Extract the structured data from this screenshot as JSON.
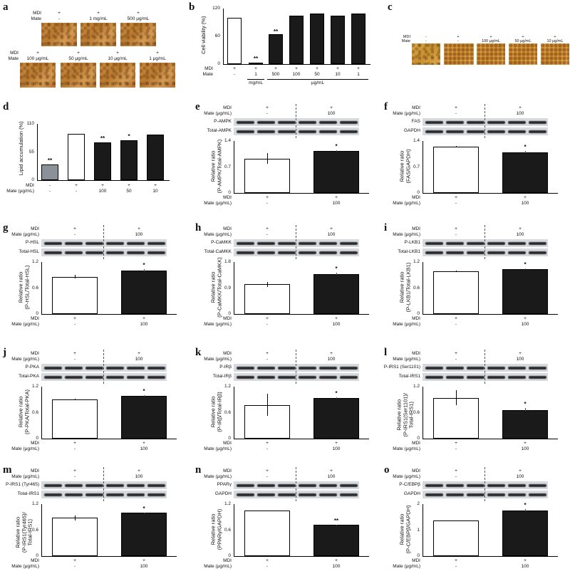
{
  "figure": {
    "panels": {
      "a": {
        "label": "a",
        "row1": {
          "mdi_label": "MDI",
          "mate_label": "Mate",
          "items": [
            {
              "mdi": "+",
              "mate": "-"
            },
            {
              "mdi": "+",
              "mate": "1 mg/mL"
            },
            {
              "mdi": "+",
              "mate": "500 μg/mL"
            }
          ]
        },
        "row2": {
          "mdi_label": "MDI",
          "mate_label": "Mate",
          "items": [
            {
              "mdi": "+",
              "mate": "100 μg/mL"
            },
            {
              "mdi": "+",
              "mate": "50 μg/mL"
            },
            {
              "mdi": "+",
              "mate": "10 μg/mL"
            },
            {
              "mdi": "+",
              "mate": "1 μg/mL"
            }
          ]
        }
      },
      "b": {
        "label": "b",
        "ylabel": "Cell viability (%)",
        "yticks": [
          "120",
          "60",
          "0"
        ],
        "mdi_label": "MDI",
        "mate_label": "Mate",
        "mdi": [
          "+",
          "+",
          "+",
          "+",
          "+",
          "+",
          "+"
        ],
        "mate": [
          "-",
          "1",
          "500",
          "100",
          "50",
          "10",
          "1"
        ],
        "unit_groups": [
          "mg/mL",
          "μg/mL"
        ],
        "stars": [
          "",
          "**",
          "**",
          "",
          "",
          "",
          ""
        ]
      },
      "c": {
        "label": "c",
        "mdi_label": "MDI",
        "mate_label": "Mate",
        "items": [
          {
            "mdi": "-",
            "mate": "-"
          },
          {
            "mdi": "+",
            "mate": "-"
          },
          {
            "mdi": "+",
            "mate": "100 μg/mL"
          },
          {
            "mdi": "+",
            "mate": "50 μg/mL"
          },
          {
            "mdi": "+",
            "mate": "10 μg/mL"
          }
        ]
      },
      "d": {
        "label": "d",
        "ylabel": "Lipid accumulation (%)",
        "yticks": [
          "110",
          "55",
          "0"
        ],
        "mdi_label": "MDI",
        "mate_label": "Mate (μg/mL)",
        "mdi": [
          "-",
          "+",
          "+",
          "+",
          "+"
        ],
        "mate": [
          "-",
          "-",
          "100",
          "50",
          "10"
        ],
        "stars": [
          "**",
          "",
          "**",
          "*",
          ""
        ]
      },
      "e": {
        "label": "e",
        "blot_rows": [
          "P-AMPK",
          "Total-AMPK"
        ],
        "ylabel": "Relative ratio\n(P-AMPK/Total-AMPK)",
        "yticks": [
          "1.4",
          "0.7",
          "0"
        ],
        "star": "*"
      },
      "f": {
        "label": "f",
        "blot_rows": [
          "FAS",
          "GAPDH"
        ],
        "ylabel": "Relative ratio\n(FAS/GAPDH)",
        "yticks": [
          "1.4",
          "0.7",
          "0"
        ],
        "star": "*"
      },
      "g": {
        "label": "g",
        "blot_rows": [
          "P-HSL",
          "Total-HSL"
        ],
        "ylabel": "Relative ratio\n(P-HSL/Total-HSL)",
        "yticks": [
          "1.2",
          "0.6",
          "0"
        ],
        "star": "*"
      },
      "h": {
        "label": "h",
        "blot_rows": [
          "P-CaMKK",
          "Total-CaMKK"
        ],
        "ylabel": "Relative ratio\n(P-CaMKK/Total-CaMKK)",
        "yticks": [
          "1.8",
          "0.9",
          "0"
        ],
        "star": "*"
      },
      "i": {
        "label": "i",
        "blot_rows": [
          "P-LKB1",
          "Total-LKB1"
        ],
        "ylabel": "Relative ratio\n(P-LKB1/Total-LKB1)",
        "yticks": [
          "1.2",
          "0.6",
          "0"
        ],
        "star": "*"
      },
      "j": {
        "label": "j",
        "blot_rows": [
          "P-PKA",
          "Total-PKA"
        ],
        "ylabel": "Relative ratio\n(P-PKA/Total-PKA)",
        "yticks": [
          "1.2",
          "0.6",
          "0"
        ],
        "star": "*"
      },
      "k": {
        "label": "k",
        "blot_rows": [
          "P-IRβ",
          "Total-IRβ"
        ],
        "ylabel": "Relative ratio\n(P-IRβ/Total-IRβ)",
        "yticks": [
          "1.2",
          "0.6",
          "0"
        ],
        "star": "*"
      },
      "l": {
        "label": "l",
        "blot_rows": [
          "P-IRS1 (Ser1101)",
          "Total-IRS1"
        ],
        "ylabel": "Relative ratio\n(P-IRS1(Ser1101)/\nTotal-IRS1)",
        "yticks": [
          "1.2",
          "0.6",
          "0"
        ],
        "star": "*"
      },
      "m": {
        "label": "m",
        "blot_rows": [
          "P-IRS1 (Tyr465)",
          "Total-IRS1"
        ],
        "ylabel": "Relative ratio\n(P-IRS1(Tyr465)/\nTotal-IRS1)",
        "yticks": [
          "1.2",
          "0.6",
          "0"
        ],
        "star": "*"
      },
      "n": {
        "label": "n",
        "blot_rows": [
          "PPARγ",
          "GAPDH"
        ],
        "ylabel": "Relative ratio\n(PPARγ/GAPDH)",
        "yticks": [
          "1.2",
          "0.6",
          "0"
        ],
        "star": "**"
      },
      "o": {
        "label": "o",
        "blot_rows": [
          "P-C/EBPβ",
          "GAPDH"
        ],
        "ylabel": "Relative ratio\n(P-C/EBPβ/GAPDH)",
        "yticks": [
          "2",
          "1",
          "0"
        ],
        "star": "*"
      }
    },
    "common": {
      "mdi_label": "MDI",
      "mate_label": "Mate (μg/mL)",
      "mdi": [
        "+",
        "+"
      ],
      "mate": [
        "-",
        "100"
      ]
    }
  },
  "chart_data": [
    {
      "panel": "b",
      "type": "bar",
      "title": "",
      "xlabel": "",
      "ylabel": "Cell viability (%)",
      "ylim": [
        0,
        120
      ],
      "categories": [
        "MDI+/Mate-",
        "MDI+/Mate 1 mg/mL",
        "MDI+/Mate 500 μg/mL",
        "MDI+/Mate 100 μg/mL",
        "MDI+/Mate 50 μg/mL",
        "MDI+/Mate 10 μg/mL",
        "MDI+/Mate 1 μg/mL"
      ],
      "values": [
        100,
        3,
        65,
        106,
        110,
        105,
        110
      ],
      "significance": [
        "",
        "**",
        "**",
        "",
        "",
        "",
        ""
      ]
    },
    {
      "panel": "d",
      "type": "bar",
      "ylabel": "Lipid accumulation (%)",
      "ylim": [
        0,
        110
      ],
      "categories": [
        "MDI-/Mate-",
        "MDI+/Mate-",
        "MDI+/Mate 100",
        "MDI+/Mate 50",
        "MDI+/Mate 10"
      ],
      "values": [
        31,
        90,
        74,
        78,
        89
      ],
      "significance": [
        "**",
        "",
        "**",
        "*",
        ""
      ]
    },
    {
      "panel": "e",
      "type": "bar",
      "ylabel": "Relative ratio (P-AMPK/Total-AMPK)",
      "ylim": [
        0,
        1.4
      ],
      "categories": [
        "MDI+/Mate-",
        "MDI+/Mate 100"
      ],
      "values": [
        0.93,
        1.14
      ],
      "errors": [
        0.15,
        0.02
      ],
      "significance": [
        "",
        "*"
      ]
    },
    {
      "panel": "f",
      "type": "bar",
      "ylabel": "Relative ratio (FAS/GAPDH)",
      "ylim": [
        0,
        1.4
      ],
      "categories": [
        "MDI+/Mate-",
        "MDI+/Mate 100"
      ],
      "values": [
        1.24,
        1.1
      ],
      "errors": [
        0.02,
        0.03
      ],
      "significance": [
        "",
        "*"
      ]
    },
    {
      "panel": "g",
      "type": "bar",
      "ylabel": "Relative ratio (P-HSL/Total-HSL)",
      "ylim": [
        0,
        1.2
      ],
      "categories": [
        "MDI+/Mate-",
        "MDI+/Mate 100"
      ],
      "values": [
        0.86,
        1.01
      ],
      "errors": [
        0.04,
        0.02
      ],
      "significance": [
        "",
        "*"
      ]
    },
    {
      "panel": "h",
      "type": "bar",
      "ylabel": "Relative ratio (P-CaMKK/Total-CaMKK)",
      "ylim": [
        0,
        1.8
      ],
      "categories": [
        "MDI+/Mate-",
        "MDI+/Mate 100"
      ],
      "values": [
        1.03,
        1.39
      ],
      "errors": [
        0.09,
        0.03
      ],
      "significance": [
        "",
        "*"
      ]
    },
    {
      "panel": "i",
      "type": "bar",
      "ylabel": "Relative ratio (P-LKB1/Total-LKB1)",
      "ylim": [
        0,
        1.2
      ],
      "categories": [
        "MDI+/Mate-",
        "MDI+/Mate 100"
      ],
      "values": [
        0.99,
        1.04
      ],
      "errors": [
        0.02,
        0.02
      ],
      "significance": [
        "",
        "*"
      ]
    },
    {
      "panel": "j",
      "type": "bar",
      "ylabel": "Relative ratio (P-PKA/Total-PKA)",
      "ylim": [
        0,
        1.2
      ],
      "categories": [
        "MDI+/Mate-",
        "MDI+/Mate 100"
      ],
      "values": [
        0.9,
        0.99
      ],
      "errors": [
        0.02,
        0.02
      ],
      "significance": [
        "",
        "*"
      ]
    },
    {
      "panel": "k",
      "type": "bar",
      "ylabel": "Relative ratio (P-IRβ/Total-IRβ)",
      "ylim": [
        0,
        1.2
      ],
      "categories": [
        "MDI+/Mate-",
        "MDI+/Mate 100"
      ],
      "values": [
        0.78,
        0.93
      ],
      "errors": [
        0.25,
        0.02
      ],
      "significance": [
        "",
        "*"
      ]
    },
    {
      "panel": "l",
      "type": "bar",
      "ylabel": "Relative ratio (P-IRS1(Ser1101)/Total-IRS1)",
      "ylim": [
        0,
        1.2
      ],
      "categories": [
        "MDI+/Mate-",
        "MDI+/Mate 100"
      ],
      "values": [
        0.94,
        0.66
      ],
      "errors": [
        0.17,
        0.04
      ],
      "significance": [
        "",
        "*"
      ]
    },
    {
      "panel": "m",
      "type": "bar",
      "ylabel": "Relative ratio (P-IRS1(Tyr465)/Total-IRS1)",
      "ylim": [
        0,
        1.2
      ],
      "categories": [
        "MDI+/Mate-",
        "MDI+/Mate 100"
      ],
      "values": [
        0.88,
        1.0
      ],
      "errors": [
        0.05,
        0.01
      ],
      "significance": [
        "",
        "*"
      ]
    },
    {
      "panel": "n",
      "type": "bar",
      "ylabel": "Relative ratio (PPARγ/GAPDH)",
      "ylim": [
        0,
        1.2
      ],
      "categories": [
        "MDI+/Mate-",
        "MDI+/Mate 100"
      ],
      "values": [
        1.05,
        0.72
      ],
      "errors": [
        0.01,
        0.01
      ],
      "significance": [
        "",
        "**"
      ]
    },
    {
      "panel": "o",
      "type": "bar",
      "ylabel": "Relative ratio (P-C/EBPβ/GAPDH)",
      "ylim": [
        0,
        2
      ],
      "categories": [
        "MDI+/Mate-",
        "MDI+/Mate 100"
      ],
      "values": [
        1.37,
        1.76
      ],
      "errors": [
        0.01,
        0.05
      ],
      "significance": [
        "",
        "*"
      ]
    }
  ]
}
